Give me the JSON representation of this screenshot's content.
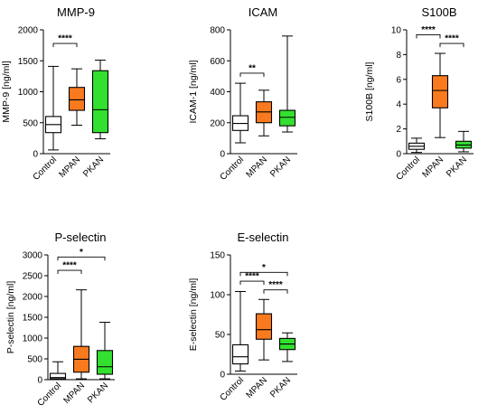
{
  "colors": {
    "Control": "#ffffff",
    "MPAN": "#f97a1e",
    "PKAN": "#33e02f",
    "stroke": "#000000"
  },
  "chart_data": [
    {
      "type": "box",
      "title": "MMP-9",
      "ylabel": "MMP-9 [ng/ml]",
      "ylim": [
        0,
        2000
      ],
      "yticks": [
        0,
        500,
        1000,
        1500,
        2000
      ],
      "categories": [
        "Control",
        "MPAN",
        "PKAN"
      ],
      "boxes": [
        {
          "min": 60,
          "q1": 340,
          "median": 470,
          "q3": 600,
          "max": 1410
        },
        {
          "min": 460,
          "q1": 700,
          "median": 870,
          "q3": 1070,
          "max": 1370
        },
        {
          "min": 240,
          "q1": 340,
          "median": 710,
          "q3": 1340,
          "max": 1510
        }
      ],
      "significance": [
        {
          "from": 0,
          "to": 1,
          "label": "****",
          "y": 1780
        }
      ]
    },
    {
      "type": "box",
      "title": "ICAM",
      "ylabel": "ICAM-1 [ng/ml]",
      "ylim": [
        0,
        800
      ],
      "yticks": [
        0,
        200,
        400,
        600,
        800
      ],
      "categories": [
        "Control",
        "MPAN",
        "PKAN"
      ],
      "boxes": [
        {
          "min": 70,
          "q1": 150,
          "median": 195,
          "q3": 245,
          "max": 455
        },
        {
          "min": 115,
          "q1": 200,
          "median": 270,
          "q3": 335,
          "max": 410
        },
        {
          "min": 140,
          "q1": 180,
          "median": 235,
          "q3": 280,
          "max": 760
        }
      ],
      "significance": [
        {
          "from": 0,
          "to": 1,
          "label": "**",
          "y": 520
        }
      ]
    },
    {
      "type": "box",
      "title": "S100B",
      "ylabel": "S100B [ng/ml]",
      "ylim": [
        0,
        10
      ],
      "yticks": [
        0,
        2,
        4,
        6,
        8,
        10
      ],
      "categories": [
        "Control",
        "MPAN",
        "PKAN"
      ],
      "boxes": [
        {
          "min": 0.1,
          "q1": 0.35,
          "median": 0.6,
          "q3": 0.85,
          "max": 1.25
        },
        {
          "min": 1.3,
          "q1": 3.7,
          "median": 5.1,
          "q3": 6.3,
          "max": 8.1
        },
        {
          "min": 0.15,
          "q1": 0.45,
          "median": 0.7,
          "q3": 1.0,
          "max": 1.8
        }
      ],
      "significance": [
        {
          "from": 0,
          "to": 1,
          "label": "****",
          "y": 9.6
        },
        {
          "from": 1,
          "to": 2,
          "label": "****",
          "y": 8.9
        }
      ]
    },
    {
      "type": "box",
      "title": "P-selectin",
      "ylabel": "P-selectin [ng/ml]",
      "ylim": [
        0,
        3000
      ],
      "yticks": [
        0,
        500,
        1000,
        1500,
        2000,
        2500,
        3000
      ],
      "categories": [
        "Control",
        "MPAN",
        "PKAN"
      ],
      "boxes": [
        {
          "min": 0,
          "q1": 20,
          "median": 50,
          "q3": 150,
          "max": 430
        },
        {
          "min": 20,
          "q1": 180,
          "median": 490,
          "q3": 800,
          "max": 2160
        },
        {
          "min": 20,
          "q1": 130,
          "median": 310,
          "q3": 700,
          "max": 1380
        }
      ],
      "significance": [
        {
          "from": 0,
          "to": 2,
          "label": "*",
          "y": 2950
        },
        {
          "from": 0,
          "to": 1,
          "label": "****",
          "y": 2630
        }
      ]
    },
    {
      "type": "box",
      "title": "E-selectin",
      "ylabel": "E-selectin [ng/ml]",
      "ylim": [
        0,
        150
      ],
      "yticks": [
        0,
        50,
        100,
        150
      ],
      "categories": [
        "Control",
        "MPAN",
        "PKAN"
      ],
      "boxes": [
        {
          "min": 4,
          "q1": 13,
          "median": 22,
          "q3": 37,
          "max": 104
        },
        {
          "min": 18,
          "q1": 44,
          "median": 56,
          "q3": 76,
          "max": 94
        },
        {
          "min": 16,
          "q1": 31,
          "median": 38,
          "q3": 45,
          "max": 52
        }
      ],
      "significance": [
        {
          "from": 0,
          "to": 2,
          "label": "*",
          "y": 128
        },
        {
          "from": 0,
          "to": 1,
          "label": "****",
          "y": 117
        },
        {
          "from": 1,
          "to": 2,
          "label": "****",
          "y": 106
        }
      ]
    }
  ]
}
